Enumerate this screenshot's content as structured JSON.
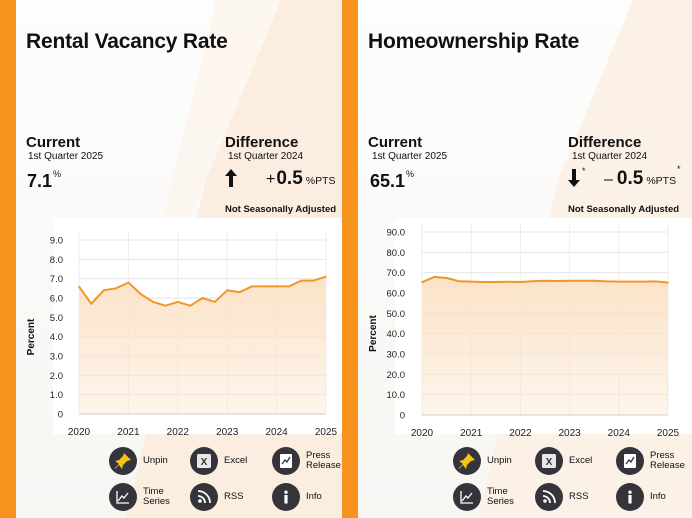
{
  "colors": {
    "stripe": "#f7941d",
    "line": "#f0962a",
    "area": "#fbe3c8",
    "icon_bg": "#34343a",
    "pin_yellow": "#f3c316"
  },
  "buttons": {
    "unpin": "Unpin",
    "excel": "Excel",
    "press_release": "Press Release",
    "time_series": "Time Series",
    "rss": "RSS",
    "info": "Info"
  },
  "panels": [
    {
      "title": "Rental Vacancy Rate",
      "current": {
        "label": "Current",
        "period": "1st Quarter 2025",
        "value": "7.1",
        "unit": "%"
      },
      "difference": {
        "label": "Difference",
        "period": "1st Quarter 2024",
        "direction": "up",
        "sign": "+",
        "value": "0.5",
        "unit": "%PTS",
        "asterisk": ""
      },
      "note": "Not Seasonally Adjusted"
    },
    {
      "title": "Homeownership Rate",
      "current": {
        "label": "Current",
        "period": "1st Quarter 2025",
        "value": "65.1",
        "unit": "%"
      },
      "difference": {
        "label": "Difference",
        "period": "1st Quarter 2024",
        "direction": "down",
        "sign": "–",
        "value": "0.5",
        "unit": "%PTS",
        "asterisk": "*"
      },
      "note": "Not Seasonally Adjusted"
    }
  ],
  "chart_data": [
    {
      "type": "area",
      "title": "",
      "xlabel": "",
      "ylabel": "Percent",
      "x_ticks": [
        "2020",
        "2021",
        "2022",
        "2023",
        "2024",
        "2025"
      ],
      "y_ticks": [
        "0",
        "1.0",
        "2.0",
        "3.0",
        "4.0",
        "5.0",
        "6.0",
        "7.0",
        "8.0",
        "9.0"
      ],
      "xlim": [
        2020,
        2025
      ],
      "ylim": [
        0,
        10
      ],
      "grid": true,
      "series": [
        {
          "x": [
            2020.0,
            2020.25,
            2020.5,
            2020.75,
            2021.0,
            2021.25,
            2021.5,
            2021.75,
            2022.0,
            2022.25,
            2022.5,
            2022.75,
            2023.0,
            2023.25,
            2023.5,
            2023.75,
            2024.0,
            2024.25,
            2024.5,
            2024.75,
            2025.0
          ],
          "values": [
            6.6,
            5.7,
            6.4,
            6.5,
            6.8,
            6.2,
            5.8,
            5.6,
            5.8,
            5.6,
            6.0,
            5.8,
            6.4,
            6.3,
            6.6,
            6.6,
            6.6,
            6.6,
            6.9,
            6.9,
            7.1
          ]
        }
      ]
    },
    {
      "type": "area",
      "title": "",
      "xlabel": "",
      "ylabel": "Percent",
      "x_ticks": [
        "2020",
        "2021",
        "2022",
        "2023",
        "2024",
        "2025"
      ],
      "y_ticks": [
        "0",
        "10.0",
        "20.0",
        "30.0",
        "40.0",
        "50.0",
        "60.0",
        "70.0",
        "80.0",
        "90.0"
      ],
      "xlim": [
        2020,
        2025
      ],
      "ylim": [
        0,
        100
      ],
      "grid": true,
      "series": [
        {
          "x": [
            2020.0,
            2020.25,
            2020.5,
            2020.75,
            2021.0,
            2021.25,
            2021.5,
            2021.75,
            2022.0,
            2022.25,
            2022.5,
            2022.75,
            2023.0,
            2023.25,
            2023.5,
            2023.75,
            2024.0,
            2024.25,
            2024.5,
            2024.75,
            2025.0
          ],
          "values": [
            65.3,
            67.9,
            67.4,
            65.8,
            65.6,
            65.4,
            65.4,
            65.5,
            65.4,
            65.8,
            66.0,
            65.9,
            66.0,
            66.0,
            66.0,
            65.7,
            65.6,
            65.6,
            65.6,
            65.7,
            65.1
          ]
        }
      ]
    }
  ]
}
